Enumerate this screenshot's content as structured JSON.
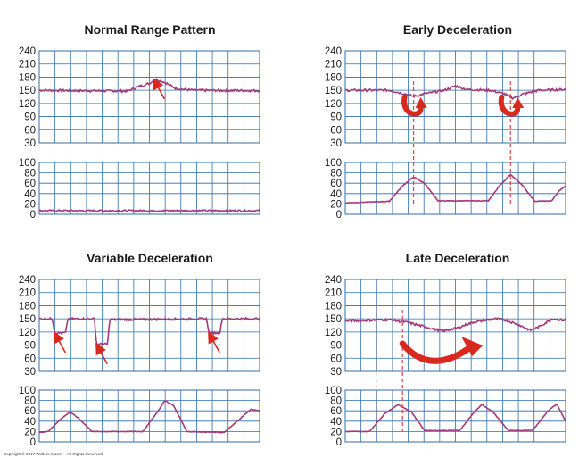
{
  "colors": {
    "trace": "#a23a7c",
    "grid": "#2f6fa8",
    "arrow": "#d9281e",
    "marker": "#e04040"
  },
  "copyright": "Copyright © 2017 Wolters Kluwer – All Rights Reserved",
  "chart_data": [
    {
      "type": "line",
      "title": "Normal Range Pattern",
      "fhr": {
        "yticks": [
          "240",
          "210",
          "180",
          "150",
          "120",
          "90",
          "60",
          "30"
        ],
        "ylim": [
          30,
          240
        ],
        "baseline": 150,
        "points": [
          [
            0,
            150
          ],
          [
            0.4,
            148
          ],
          [
            0.45,
            158
          ],
          [
            0.5,
            166
          ],
          [
            0.53,
            175
          ],
          [
            0.57,
            168
          ],
          [
            0.62,
            154
          ],
          [
            0.7,
            150
          ],
          [
            1,
            149
          ]
        ]
      },
      "uc": {
        "yticks": [
          "100",
          "80",
          "60",
          "40",
          "20",
          "0"
        ],
        "ylim": [
          0,
          100
        ],
        "points": [
          [
            0,
            7
          ],
          [
            1,
            7
          ]
        ]
      },
      "annotations": [
        {
          "shape": "arrow",
          "target": [
            0.52,
            175
          ]
        }
      ]
    },
    {
      "type": "line",
      "title": "Early Deceleration",
      "fhr": {
        "yticks": [
          "240",
          "210",
          "180",
          "150",
          "120",
          "90",
          "60",
          "30"
        ],
        "ylim": [
          30,
          240
        ],
        "baseline": 150,
        "points": [
          [
            0,
            150
          ],
          [
            0.2,
            150
          ],
          [
            0.27,
            142
          ],
          [
            0.31,
            136
          ],
          [
            0.36,
            142
          ],
          [
            0.45,
            150
          ],
          [
            0.5,
            160
          ],
          [
            0.55,
            152
          ],
          [
            0.66,
            150
          ],
          [
            0.72,
            142
          ],
          [
            0.76,
            132
          ],
          [
            0.81,
            142
          ],
          [
            0.88,
            150
          ],
          [
            1,
            152
          ]
        ]
      },
      "uc": {
        "yticks": [
          "100",
          "80",
          "60",
          "40",
          "20",
          "0"
        ],
        "ylim": [
          0,
          100
        ],
        "points": [
          [
            0,
            22
          ],
          [
            0.2,
            25
          ],
          [
            0.26,
            55
          ],
          [
            0.31,
            72
          ],
          [
            0.36,
            60
          ],
          [
            0.42,
            26
          ],
          [
            0.65,
            26
          ],
          [
            0.7,
            55
          ],
          [
            0.75,
            77
          ],
          [
            0.8,
            58
          ],
          [
            0.86,
            25
          ],
          [
            0.95,
            26
          ],
          [
            1,
            52
          ],
          [
            1.04,
            55
          ]
        ],
        "extra": [
          [
            0.93,
            22
          ],
          [
            0.97,
            45
          ],
          [
            1.0,
            55
          ],
          [
            1.03,
            45
          ],
          [
            1.07,
            22
          ]
        ]
      },
      "markers": [
        0.31,
        0.75
      ],
      "annotations": [
        {
          "shape": "u-turn-arrow",
          "x": 0.31
        },
        {
          "shape": "u-turn-arrow",
          "x": 0.75
        }
      ]
    },
    {
      "type": "line",
      "title": "Variable Deceleration",
      "fhr": {
        "yticks": [
          "240",
          "210",
          "180",
          "150",
          "120",
          "90",
          "60",
          "30"
        ],
        "ylim": [
          30,
          240
        ],
        "baseline": 150,
        "points": [
          [
            0,
            150
          ],
          [
            0.06,
            150
          ],
          [
            0.07,
            118
          ],
          [
            0.12,
            118
          ],
          [
            0.13,
            150
          ],
          [
            0.25,
            150
          ],
          [
            0.26,
            92
          ],
          [
            0.31,
            92
          ],
          [
            0.32,
            148
          ],
          [
            0.76,
            150
          ],
          [
            0.77,
            118
          ],
          [
            0.82,
            118
          ],
          [
            0.83,
            150
          ],
          [
            1,
            150
          ]
        ]
      },
      "uc": {
        "yticks": [
          "100",
          "80",
          "60",
          "40",
          "20",
          "0"
        ],
        "ylim": [
          0,
          100
        ],
        "points": [
          [
            0,
            18
          ],
          [
            0.04,
            20
          ],
          [
            0.1,
            45
          ],
          [
            0.14,
            58
          ],
          [
            0.18,
            45
          ],
          [
            0.24,
            20
          ],
          [
            0.47,
            20
          ],
          [
            0.54,
            60
          ],
          [
            0.57,
            80
          ],
          [
            0.61,
            70
          ],
          [
            0.67,
            20
          ],
          [
            0.84,
            18
          ],
          [
            0.92,
            48
          ],
          [
            0.96,
            63
          ],
          [
            1,
            60
          ]
        ]
      },
      "annotations": [
        {
          "shape": "arrow",
          "target": [
            0.07,
            118
          ]
        },
        {
          "shape": "arrow",
          "target": [
            0.26,
            92
          ]
        },
        {
          "shape": "arrow",
          "target": [
            0.77,
            118
          ]
        }
      ]
    },
    {
      "type": "line",
      "title": "Late Deceleration",
      "fhr": {
        "yticks": [
          "240",
          "210",
          "180",
          "150",
          "120",
          "90",
          "60",
          "30"
        ],
        "ylim": [
          30,
          240
        ],
        "baseline": 150,
        "points": [
          [
            0,
            145
          ],
          [
            0.2,
            148
          ],
          [
            0.28,
            142
          ],
          [
            0.36,
            132
          ],
          [
            0.44,
            122
          ],
          [
            0.5,
            128
          ],
          [
            0.58,
            142
          ],
          [
            0.68,
            150
          ],
          [
            0.72,
            148
          ],
          [
            0.78,
            138
          ],
          [
            0.84,
            124
          ],
          [
            0.88,
            132
          ],
          [
            0.94,
            150
          ],
          [
            1,
            146
          ]
        ]
      },
      "uc": {
        "yticks": [
          "100",
          "80",
          "60",
          "40",
          "20",
          "0"
        ],
        "ylim": [
          0,
          100
        ],
        "points": [
          [
            0,
            20
          ],
          [
            0.11,
            20
          ],
          [
            0.18,
            55
          ],
          [
            0.24,
            72
          ],
          [
            0.3,
            58
          ],
          [
            0.36,
            22
          ],
          [
            0.52,
            22
          ],
          [
            0.58,
            55
          ],
          [
            0.62,
            72
          ],
          [
            0.67,
            58
          ],
          [
            0.74,
            22
          ],
          [
            0.85,
            22
          ],
          [
            0.92,
            60
          ],
          [
            0.96,
            73
          ],
          [
            1,
            40
          ]
        ]
      },
      "markers": [
        0.14,
        0.26
      ],
      "annotations": [
        {
          "shape": "curved-arrow",
          "from": 0.26,
          "to": 0.6
        }
      ]
    }
  ]
}
